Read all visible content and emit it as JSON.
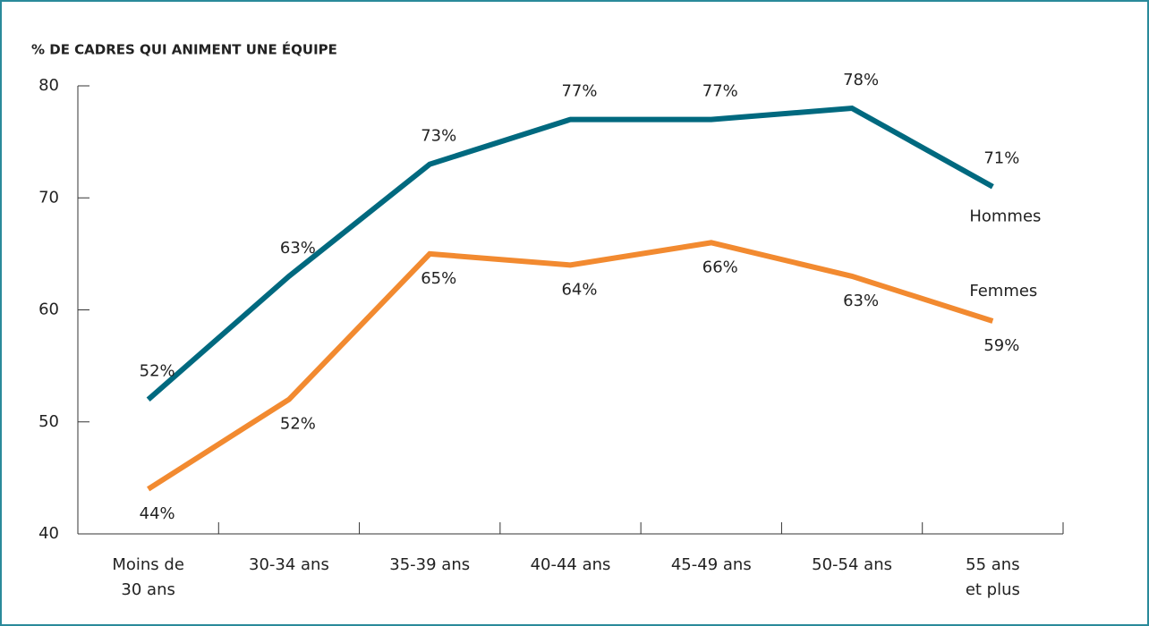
{
  "chart_data": {
    "type": "line",
    "title": "% DE CADRES QUI ANIMENT UNE ÉQUIPE",
    "categories": [
      "Moins de\n30 ans",
      "30-34 ans",
      "35-39 ans",
      "40-44 ans",
      "45-49 ans",
      "50-54 ans",
      "55 ans\net plus"
    ],
    "series": [
      {
        "name": "Hommes",
        "color": "#00697f",
        "values": [
          52,
          63,
          73,
          77,
          77,
          78,
          71
        ],
        "value_labels": [
          "52%",
          "63%",
          "73%",
          "77%",
          "77%",
          "78%",
          "71%"
        ]
      },
      {
        "name": "Femmes",
        "color": "#f28a30",
        "values": [
          44,
          52,
          65,
          64,
          66,
          63,
          59
        ],
        "value_labels": [
          "44%",
          "52%",
          "65%",
          "64%",
          "66%",
          "63%",
          "59%"
        ]
      }
    ],
    "ylim": [
      40,
      80
    ],
    "yticks": [
      40,
      50,
      60,
      70,
      80
    ]
  }
}
